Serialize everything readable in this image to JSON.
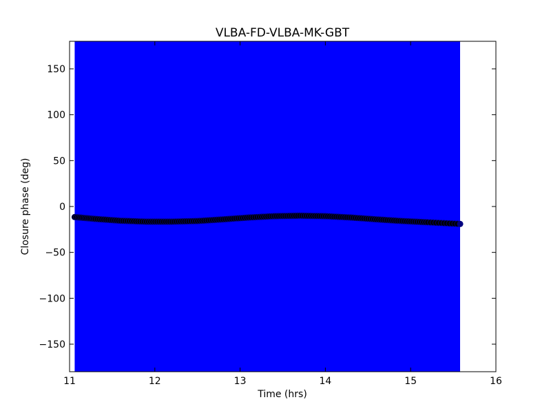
{
  "chart_data": {
    "type": "scatter",
    "title": "VLBA-FD-VLBA-MK-GBT",
    "xlabel": "Time (hrs)",
    "ylabel": "Closure phase (deg)",
    "xlim": [
      11,
      16
    ],
    "ylim": [
      -180,
      180
    ],
    "xticks": [
      11,
      12,
      13,
      14,
      15,
      16
    ],
    "xtick_labels": [
      "11",
      "12",
      "13",
      "14",
      "15",
      "16"
    ],
    "yticks": [
      150,
      100,
      50,
      0,
      -50,
      -100,
      -150
    ],
    "ytick_labels": [
      "150",
      "100",
      "50",
      "0",
      "−50",
      "−100",
      "−150"
    ],
    "grid": false,
    "error_band": {
      "x_start": 11.06,
      "x_end": 15.58,
      "y_low": -180,
      "y_high": 180,
      "color": "#0000ff"
    },
    "series": [
      {
        "marker_color": "#000000",
        "marker_edge": "#000080",
        "x": [
          11.06,
          11.3,
          11.6,
          11.9,
          12.2,
          12.5,
          12.8,
          13.1,
          13.4,
          13.7,
          14.0,
          14.3,
          14.6,
          14.9,
          15.2,
          15.58
        ],
        "y": [
          -11.5,
          -13.5,
          -15.5,
          -16.5,
          -16.5,
          -15.8,
          -14.0,
          -12.0,
          -10.5,
          -10.0,
          -10.5,
          -12.0,
          -14.0,
          -15.8,
          -17.2,
          -19.0
        ]
      }
    ]
  }
}
